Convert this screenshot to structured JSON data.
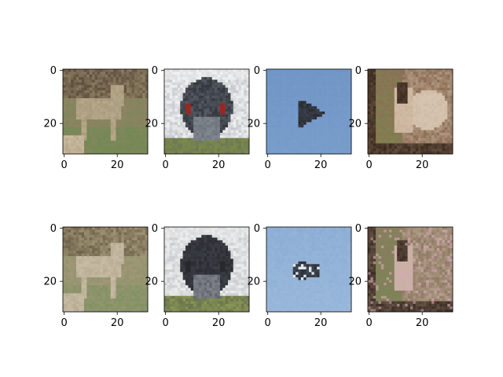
{
  "chart_data": {
    "type": "image-grid",
    "rows": 2,
    "cols": 4,
    "axis_ticks": {
      "x": [
        0,
        20
      ],
      "y": [
        0,
        20
      ]
    },
    "axis_range": {
      "x": [
        -0.5,
        31.5
      ],
      "y": [
        31.5,
        -0.5
      ]
    },
    "tick_labels": [
      "0",
      "20"
    ],
    "images": [
      {
        "content": "deer",
        "variant": "original",
        "palette": [
          "#5b4a3b",
          "#8f8264",
          "#b8a98b",
          "#6f8a52",
          "#cbbca2"
        ]
      },
      {
        "content": "ostrich-face",
        "variant": "original",
        "palette": [
          "#f2f2f2",
          "#555a63",
          "#2a2d32",
          "#7b8a4a",
          "#9aa1a9"
        ]
      },
      {
        "content": "airplane",
        "variant": "original",
        "palette": [
          "#6f95c6",
          "#7c9fcc",
          "#2b2b2f",
          "#87a8d2"
        ]
      },
      {
        "content": "horse",
        "variant": "original",
        "palette": [
          "#8b6e55",
          "#c9b29a",
          "#3a2a20",
          "#7a8a4e",
          "#d7c5b1"
        ]
      },
      {
        "content": "deer",
        "variant": "reconstruction",
        "palette": [
          "#6c6049",
          "#a39678",
          "#c8bca6",
          "#7f9263",
          "#b6ab90"
        ]
      },
      {
        "content": "ostrich-face",
        "variant": "reconstruction",
        "palette": [
          "#eeeeee",
          "#3b3f46",
          "#26282c",
          "#889653",
          "#a4a9b0"
        ]
      },
      {
        "content": "airplane",
        "variant": "reconstruction",
        "palette": [
          "#89abd3",
          "#9ab8dc",
          "#2d2f35",
          "#dfe6ee"
        ]
      },
      {
        "content": "horse",
        "variant": "reconstruction",
        "palette": [
          "#8f7a64",
          "#c6b2a0",
          "#3c2d25",
          "#6f8a4c",
          "#d9a7b9"
        ]
      }
    ]
  }
}
